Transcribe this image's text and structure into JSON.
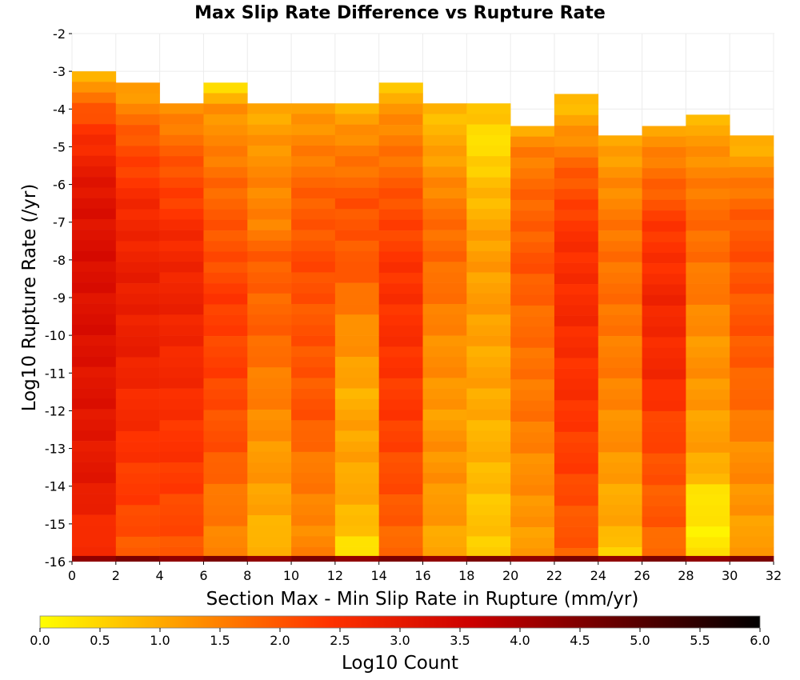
{
  "chart_data": {
    "type": "heatmap",
    "title": "Max Slip Rate Difference vs Rupture Rate",
    "xlabel": "Section Max - Min Slip Rate in Rupture (mm/yr)",
    "ylabel": "Log10 Rupture Rate (/yr)",
    "xlim": [
      0,
      32
    ],
    "ylim": [
      -16,
      -2
    ],
    "x_ticks": [
      "0",
      "2",
      "4",
      "6",
      "8",
      "10",
      "12",
      "14",
      "16",
      "18",
      "20",
      "22",
      "24",
      "26",
      "28",
      "30",
      "32"
    ],
    "y_ticks": [
      "-2",
      "-3",
      "-4",
      "-5",
      "-6",
      "-7",
      "-8",
      "-9",
      "-10",
      "-11",
      "-12",
      "-13",
      "-14",
      "-15",
      "-16"
    ],
    "x_bin_width": 2,
    "y_bin_height": 0.28,
    "grid": true,
    "colorbar": {
      "label": "Log10 Count",
      "range": [
        0,
        6
      ],
      "ticks": [
        "0.0",
        "0.5",
        "1.0",
        "1.5",
        "2.0",
        "2.5",
        "3.0",
        "3.5",
        "4.0",
        "4.5",
        "5.0",
        "5.5",
        "6.0"
      ],
      "colors": [
        "#ffff00",
        "#ff9900",
        "#ff3300",
        "#cc0000",
        "#660000",
        "#000000"
      ]
    },
    "columns": [
      {
        "x0": 0,
        "top": -3.0,
        "profile": [
          [
            -3.0,
            0.9
          ],
          [
            -3.5,
            1.4
          ],
          [
            -4.0,
            1.9
          ],
          [
            -4.5,
            2.4
          ],
          [
            -5.5,
            2.9
          ],
          [
            -6.5,
            3.2
          ],
          [
            -8.5,
            3.25
          ],
          [
            -10.5,
            3.2
          ],
          [
            -12.0,
            3.1
          ],
          [
            -14.0,
            3.0
          ],
          [
            -15.6,
            2.5
          ]
        ]
      },
      {
        "x0": 2,
        "top": -3.3,
        "profile": [
          [
            -3.3,
            1.0
          ],
          [
            -4.0,
            1.5
          ],
          [
            -5.0,
            2.1
          ],
          [
            -6.5,
            2.6
          ],
          [
            -8.0,
            2.85
          ],
          [
            -10.0,
            2.9
          ],
          [
            -12.0,
            2.6
          ],
          [
            -14.0,
            2.3
          ],
          [
            -15.6,
            2.0
          ]
        ]
      },
      {
        "x0": 4,
        "top": -3.85,
        "profile": [
          [
            -3.85,
            1.2
          ],
          [
            -4.5,
            1.6
          ],
          [
            -5.5,
            2.0
          ],
          [
            -7.0,
            2.5
          ],
          [
            -8.5,
            2.8
          ],
          [
            -10.5,
            2.7
          ],
          [
            -12.0,
            2.5
          ],
          [
            -14.0,
            2.3
          ],
          [
            -15.6,
            2.0
          ]
        ]
      },
      {
        "x0": 6,
        "top": -3.3,
        "profile": [
          [
            -3.3,
            0.3
          ],
          [
            -4.0,
            1.3
          ],
          [
            -5.0,
            1.4
          ],
          [
            -6.0,
            1.8
          ],
          [
            -7.5,
            2.0
          ],
          [
            -9.0,
            2.3
          ],
          [
            -11.0,
            2.2
          ],
          [
            -13.0,
            2.0
          ],
          [
            -14.5,
            1.6
          ],
          [
            -15.6,
            1.4
          ]
        ]
      },
      {
        "x0": 8,
        "top": -3.85,
        "profile": [
          [
            -3.85,
            0.9
          ],
          [
            -5.0,
            1.3
          ],
          [
            -7.0,
            1.5
          ],
          [
            -8.0,
            1.9
          ],
          [
            -10.0,
            1.8
          ],
          [
            -12.0,
            1.4
          ],
          [
            -13.5,
            1.2
          ],
          [
            -15.0,
            1.0
          ],
          [
            -15.6,
            0.8
          ]
        ]
      },
      {
        "x0": 10,
        "top": -3.85,
        "profile": [
          [
            -3.85,
            1.0
          ],
          [
            -5.0,
            1.5
          ],
          [
            -6.5,
            1.9
          ],
          [
            -8.0,
            2.1
          ],
          [
            -10.0,
            2.0
          ],
          [
            -12.0,
            2.0
          ],
          [
            -13.5,
            1.6
          ],
          [
            -15.0,
            1.4
          ],
          [
            -15.6,
            1.5
          ]
        ]
      },
      {
        "x0": 12,
        "top": -3.85,
        "profile": [
          [
            -3.85,
            0.8
          ],
          [
            -5.0,
            1.5
          ],
          [
            -6.5,
            2.0
          ],
          [
            -8.0,
            2.0
          ],
          [
            -10.0,
            1.3
          ],
          [
            -11.5,
            1.0
          ],
          [
            -13.5,
            1.1
          ],
          [
            -15.0,
            0.8
          ],
          [
            -15.6,
            0.4
          ]
        ]
      },
      {
        "x0": 14,
        "top": -3.3,
        "profile": [
          [
            -3.3,
            0.7
          ],
          [
            -4.0,
            1.2
          ],
          [
            -5.0,
            1.6
          ],
          [
            -7.0,
            2.2
          ],
          [
            -9.0,
            2.5
          ],
          [
            -11.0,
            2.4
          ],
          [
            -13.0,
            2.2
          ],
          [
            -15.0,
            1.9
          ],
          [
            -15.6,
            1.8
          ]
        ]
      },
      {
        "x0": 16,
        "top": -3.85,
        "profile": [
          [
            -3.85,
            0.8
          ],
          [
            -5.0,
            1.0
          ],
          [
            -6.5,
            1.6
          ],
          [
            -8.0,
            1.8
          ],
          [
            -10.0,
            1.4
          ],
          [
            -12.0,
            1.2
          ],
          [
            -14.0,
            1.3
          ],
          [
            -15.6,
            1.0
          ]
        ]
      },
      {
        "x0": 18,
        "top": -3.85,
        "profile": [
          [
            -3.85,
            0.7
          ],
          [
            -4.5,
            0.6
          ],
          [
            -5.0,
            0.3
          ],
          [
            -6.0,
            0.8
          ],
          [
            -8.0,
            1.2
          ],
          [
            -10.0,
            1.1
          ],
          [
            -12.0,
            1.0
          ],
          [
            -14.0,
            0.8
          ],
          [
            -15.6,
            0.6
          ]
        ]
      },
      {
        "x0": 20,
        "top": -4.45,
        "profile": [
          [
            -4.45,
            0.9
          ],
          [
            -5.0,
            1.5
          ],
          [
            -6.5,
            1.8
          ],
          [
            -8.0,
            2.0
          ],
          [
            -10.0,
            1.7
          ],
          [
            -12.0,
            1.6
          ],
          [
            -14.0,
            1.3
          ],
          [
            -15.6,
            1.2
          ]
        ]
      },
      {
        "x0": 22,
        "top": -3.6,
        "profile": [
          [
            -3.6,
            0.6
          ],
          [
            -4.5,
            1.2
          ],
          [
            -5.5,
            1.8
          ],
          [
            -7.0,
            2.4
          ],
          [
            -9.0,
            2.6
          ],
          [
            -11.0,
            2.5
          ],
          [
            -13.0,
            2.3
          ],
          [
            -15.0,
            2.0
          ],
          [
            -15.6,
            1.9
          ]
        ]
      },
      {
        "x0": 24,
        "top": -4.7,
        "profile": [
          [
            -4.7,
            0.9
          ],
          [
            -6.0,
            1.4
          ],
          [
            -8.0,
            1.7
          ],
          [
            -10.0,
            1.6
          ],
          [
            -12.0,
            1.4
          ],
          [
            -14.0,
            1.1
          ],
          [
            -15.4,
            0.9
          ],
          [
            -15.75,
            0.4
          ]
        ]
      },
      {
        "x0": 26,
        "top": -4.45,
        "profile": [
          [
            -4.45,
            1.0
          ],
          [
            -5.5,
            1.6
          ],
          [
            -7.0,
            2.3
          ],
          [
            -9.0,
            2.7
          ],
          [
            -11.0,
            2.6
          ],
          [
            -13.0,
            2.1
          ],
          [
            -15.0,
            1.9
          ],
          [
            -15.6,
            1.7
          ]
        ]
      },
      {
        "x0": 28,
        "top": -4.15,
        "profile": [
          [
            -4.15,
            0.9
          ],
          [
            -5.0,
            1.2
          ],
          [
            -6.5,
            1.7
          ],
          [
            -8.0,
            1.7
          ],
          [
            -10.0,
            1.3
          ],
          [
            -12.0,
            1.2
          ],
          [
            -13.5,
            1.0
          ],
          [
            -14.2,
            0.4
          ],
          [
            -15.0,
            0.2
          ],
          [
            -15.6,
            0.3
          ]
        ]
      },
      {
        "x0": 30,
        "top": -4.7,
        "profile": [
          [
            -4.7,
            0.8
          ],
          [
            -5.5,
            1.3
          ],
          [
            -7.0,
            2.0
          ],
          [
            -9.0,
            2.0
          ],
          [
            -11.0,
            1.9
          ],
          [
            -13.0,
            1.4
          ],
          [
            -15.0,
            1.2
          ],
          [
            -15.6,
            1.1
          ]
        ]
      }
    ],
    "bottom_row": {
      "y0": -16,
      "y1": -15.85,
      "value": 4.3
    }
  }
}
